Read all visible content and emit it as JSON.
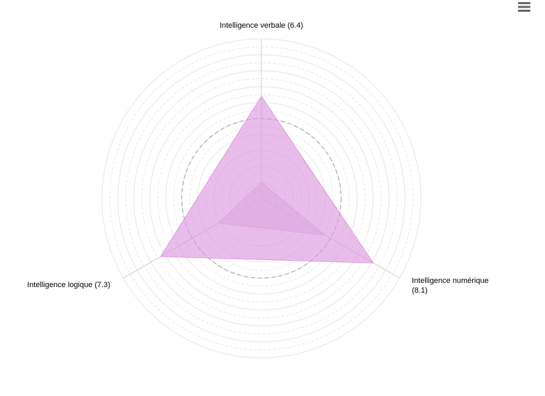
{
  "menu": {
    "icon": "hamburger-menu-icon"
  },
  "chart_data": {
    "type": "radar",
    "title": "",
    "axes": [
      {
        "label": "Intelligence verbale (6.4)",
        "value": 6.4
      },
      {
        "label": "Intelligence numérique (8.1)",
        "value": 8.1
      },
      {
        "label": "Intelligence logique (7.3)",
        "value": 7.3
      }
    ],
    "series": [
      {
        "values": [
          6.4,
          8.1,
          7.3
        ],
        "color": "#dd99e0"
      },
      {
        "values": [
          1.0,
          4.6,
          3.1
        ],
        "color": "#dda6df"
      }
    ],
    "reference_ring": 5,
    "rlim": [
      0,
      10
    ],
    "ring_step": 0.5,
    "grid": true,
    "colors": {
      "fill": "#dd99e0",
      "fill_opacity": 0.7,
      "grid": "#e6e6e6",
      "axis": "#cccccc",
      "reference": "#999999"
    }
  }
}
